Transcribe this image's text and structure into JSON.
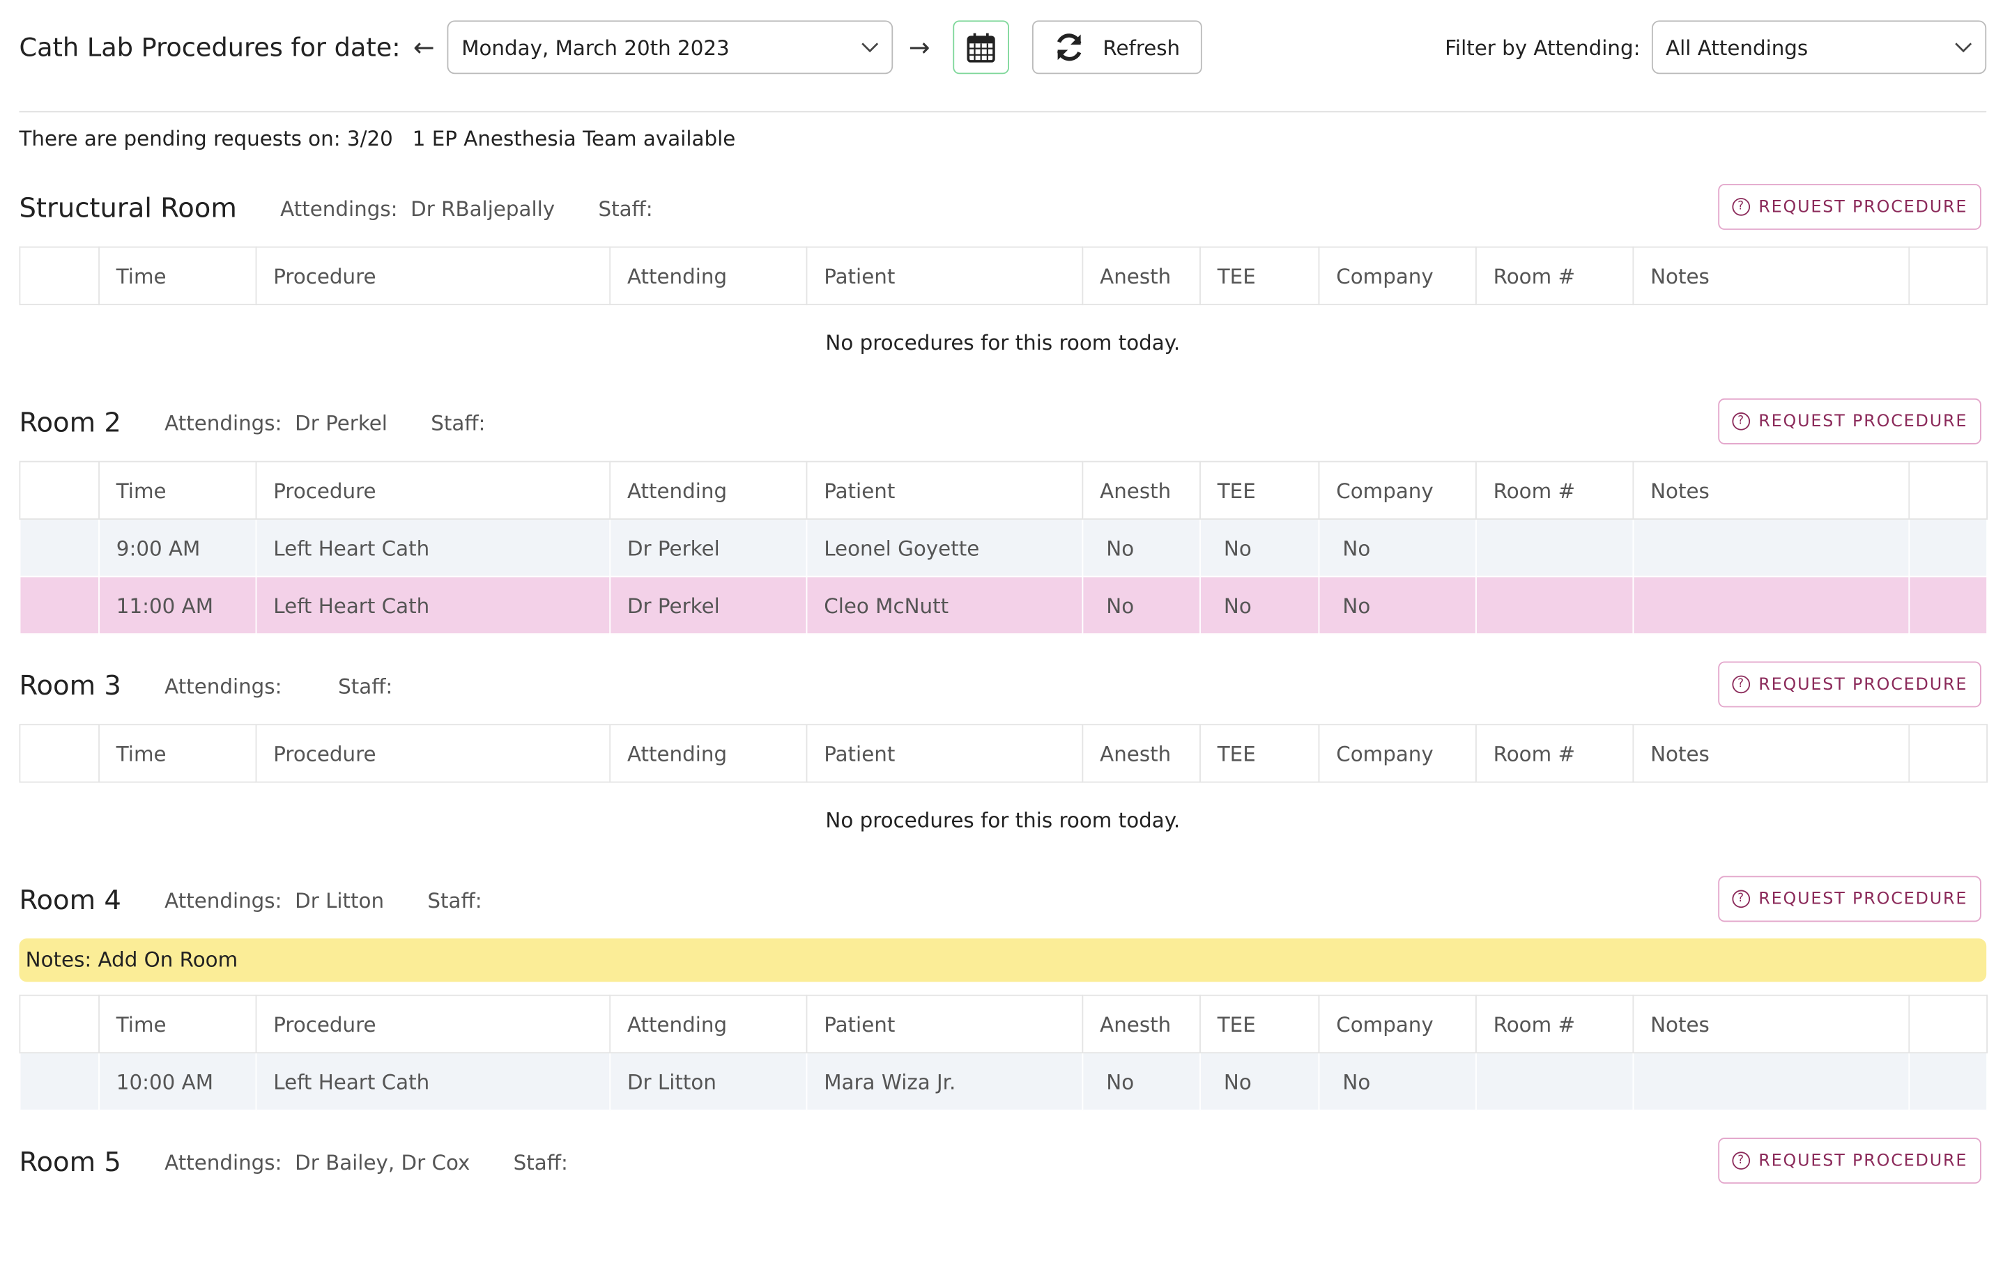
{
  "header": {
    "title": "Cath Lab Procedures for date:",
    "date": "Monday, March 20th 2023",
    "refresh": "Refresh",
    "filter_label": "Filter by Attending:",
    "filter_value": "All Attendings"
  },
  "notice": {
    "pending": "There are pending requests on: 3/20",
    "anesthesia": "1 EP Anesthesia Team available"
  },
  "labels": {
    "attendings": "Attendings:",
    "staff": "Staff:",
    "request": "REQUEST PROCEDURE",
    "empty": "No procedures for this room today."
  },
  "columns": [
    "Time",
    "Procedure",
    "Attending",
    "Patient",
    "Anesth",
    "TEE",
    "Company",
    "Room #",
    "Notes"
  ],
  "rooms": [
    {
      "name": "Structural Room",
      "attendings": "Dr RBaljepally",
      "rows": []
    },
    {
      "name": "Room 2",
      "attendings": "Dr Perkel",
      "rows": [
        {
          "background": "#f1f4f8",
          "cells": [
            "9:00 AM",
            "Left Heart Cath",
            "Dr Perkel",
            "Leonel Goyette",
            "No",
            "No",
            "No"
          ]
        },
        {
          "background": "#f3d1e8",
          "cells": [
            "11:00 AM",
            "Left Heart Cath",
            "Dr Perkel",
            "Cleo McNutt",
            "No",
            "No",
            "No"
          ]
        }
      ]
    },
    {
      "name": "Room 3",
      "rows": []
    },
    {
      "name": "Room 4",
      "attendings": "Dr Litton",
      "notes": "Notes: Add On Room",
      "rows": [
        {
          "background": "#f1f4f8",
          "cells": [
            "10:00 AM",
            "Left Heart Cath",
            "Dr Litton",
            "Mara Wiza Jr.",
            "No",
            "No",
            "No"
          ]
        }
      ]
    },
    {
      "name": "Room 5",
      "attendings": "Dr Bailey, Dr Cox"
    }
  ]
}
